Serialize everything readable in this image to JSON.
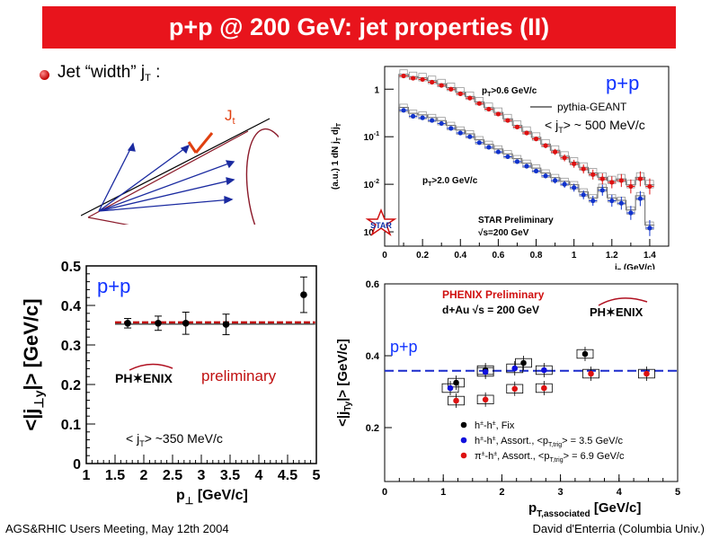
{
  "title": "p+p @ 200 GeV: jet properties (II)",
  "bullet": {
    "text": "Jet “width” j",
    "sub": "T",
    "suffix": " :"
  },
  "cone_label": "J",
  "cone_label_sub": "t",
  "footer": {
    "left": "AGS&RHIC Users Meeting, May 12th 2004",
    "right": "David d'Enterria (Columbia Univ.)"
  },
  "chart_data": [
    {
      "id": "star-jt",
      "type": "scatter",
      "ylabel_parts": [
        "(a.u.)",
        "1 dN",
        "j",
        "T",
        "dj",
        "T"
      ],
      "xlabel": "j",
      "xlabel_sub": "T",
      "xlabel_units": " (GeV/c)",
      "xlim": [
        0,
        1.5
      ],
      "ylim_log": [
        0.0005,
        3
      ],
      "log_y": true,
      "x_ticks": [
        "0",
        "0.2",
        "0.4",
        "0.6",
        "0.8",
        "1",
        "1.2",
        "1.4"
      ],
      "y_ticks": [
        "1",
        "10",
        "10",
        "10"
      ],
      "y_tick_exps": [
        "",
        "-1",
        "-2",
        "-3"
      ],
      "annotations": {
        "pp": "p+p",
        "hi": "p",
        "hi_sub": "T",
        "hi_rest": ">0.6 GeV/c",
        "lo": "p",
        "lo_sub": "T",
        "lo_rest": ">2.0 GeV/c",
        "legend": "pythia-GEANT",
        "mean_pre": "< j",
        "mean_sub": "T",
        "mean_post": "> ~ 500 MeV/c",
        "prelim1": "STAR Preliminary",
        "prelim2": "√s=200 GeV",
        "logo": "STAR"
      },
      "series": [
        {
          "name": "p_T>0.6 GeV/c",
          "color": "#dd1111",
          "x": [
            0.1,
            0.15,
            0.2,
            0.25,
            0.3,
            0.35,
            0.4,
            0.45,
            0.5,
            0.55,
            0.6,
            0.65,
            0.7,
            0.75,
            0.8,
            0.85,
            0.9,
            0.95,
            1.0,
            1.05,
            1.1,
            1.15,
            1.2,
            1.25,
            1.3,
            1.35,
            1.4
          ],
          "y": [
            1.9,
            1.7,
            1.6,
            1.4,
            1.2,
            1.0,
            0.8,
            0.65,
            0.5,
            0.38,
            0.3,
            0.22,
            0.16,
            0.12,
            0.09,
            0.065,
            0.048,
            0.036,
            0.027,
            0.021,
            0.016,
            0.013,
            0.011,
            0.012,
            0.009,
            0.013,
            0.009
          ]
        },
        {
          "name": "p_T>2.0 GeV/c",
          "color": "#1133cc",
          "x": [
            0.1,
            0.15,
            0.2,
            0.25,
            0.3,
            0.35,
            0.4,
            0.45,
            0.5,
            0.55,
            0.6,
            0.65,
            0.7,
            0.75,
            0.8,
            0.85,
            0.9,
            0.95,
            1.0,
            1.05,
            1.1,
            1.15,
            1.2,
            1.25,
            1.3,
            1.35,
            1.4
          ],
          "y": [
            0.36,
            0.27,
            0.25,
            0.22,
            0.19,
            0.15,
            0.12,
            0.1,
            0.075,
            0.06,
            0.048,
            0.038,
            0.03,
            0.024,
            0.019,
            0.015,
            0.012,
            0.01,
            0.0085,
            0.006,
            0.0045,
            0.0075,
            0.0045,
            0.004,
            0.0025,
            0.005,
            0.0012
          ]
        }
      ]
    },
    {
      "id": "phenix-pp",
      "type": "scatter",
      "ylabel": "<|j",
      "ylabel_sub": "⊥y",
      "ylabel_end": "|>  [GeV/c]",
      "xlabel": "p",
      "xlabel_sub": "⊥",
      "xlabel_units": " [GeV/c]",
      "xlim": [
        1,
        5
      ],
      "ylim": [
        0,
        0.5
      ],
      "x_ticks": [
        "1",
        "1.5",
        "2",
        "2.5",
        "3",
        "3.5",
        "4",
        "4.5",
        "5"
      ],
      "y_ticks": [
        "0",
        "0.1",
        "0.2",
        "0.3",
        "0.4",
        "0.5"
      ],
      "fit_value": 0.357,
      "annotations": {
        "pp": "p+p",
        "preliminary": "preliminary",
        "logo": "PH✶ENIX",
        "mean_pre": "< j",
        "mean_sub": "T",
        "mean_post": "> ~350 MeV/c"
      },
      "series": [
        {
          "name": "",
          "color": "#000000",
          "x": [
            1.72,
            2.25,
            2.73,
            3.43,
            4.78
          ],
          "y": [
            0.355,
            0.355,
            0.355,
            0.352,
            0.427
          ],
          "err": [
            0.012,
            0.018,
            0.028,
            0.026,
            0.045
          ]
        }
      ]
    },
    {
      "id": "phenix-dau",
      "type": "scatter",
      "ylabel": "<|j",
      "ylabel_sub": "Ty",
      "ylabel_end": "|>  [GeV/c]",
      "xlabel": "p",
      "xlabel_sub": "T,associated",
      "xlabel_units": "  [GeV/c]",
      "xlim": [
        0,
        5
      ],
      "ylim": [
        0.05,
        0.6
      ],
      "x_ticks": [
        "0",
        "1",
        "2",
        "3",
        "4",
        "5"
      ],
      "y_ticks": [
        "0.2",
        "0.4",
        "0.6"
      ],
      "fit_value": 0.358,
      "annotations": {
        "title1": "PHENIX Preliminary",
        "title2": "d+Au √s = 200 GeV",
        "logo": "PH✶ENIX",
        "pp": "p+p"
      },
      "legend": [
        {
          "label": "h±-h±, Fix",
          "color": "#000000"
        },
        {
          "label": "h±-h±, Assort., <p_T,trig> = 3.5 GeV/c",
          "color": "#1111dd"
        },
        {
          "label": "π±-h±, Assort., <p_T,trig> = 6.9 GeV/c",
          "color": "#dd1111"
        }
      ],
      "legend_text": [
        [
          "h",
          "±",
          "-h",
          "±",
          ", Fix",
          "",
          ""
        ],
        [
          "h",
          "±",
          "-h",
          "±",
          ", Assort., <p",
          "T,trig",
          "> = 3.5 GeV/c"
        ],
        [
          "π",
          "±",
          "-h",
          "±",
          ", Assort., <p",
          "T,trig",
          "> = 6.9 GeV/c"
        ]
      ],
      "series": [
        {
          "name": "h±-h±, Fix",
          "color": "#000000",
          "x": [
            1.22,
            1.72,
            2.37,
            3.42
          ],
          "y": [
            0.325,
            0.36,
            0.38,
            0.405
          ]
        },
        {
          "name": "h±-h±, Assort., <p_T,trig> = 3.5 GeV/c",
          "color": "#1111dd",
          "x": [
            1.12,
            1.72,
            2.22,
            2.72
          ],
          "y": [
            0.31,
            0.355,
            0.365,
            0.36
          ]
        },
        {
          "name": "π±-h±, Assort., <p_T,trig> = 6.9 GeV/c",
          "color": "#dd1111",
          "x": [
            1.22,
            1.72,
            2.22,
            2.72,
            3.52,
            4.47
          ],
          "y": [
            0.275,
            0.278,
            0.308,
            0.31,
            0.35,
            0.35
          ]
        }
      ]
    }
  ]
}
